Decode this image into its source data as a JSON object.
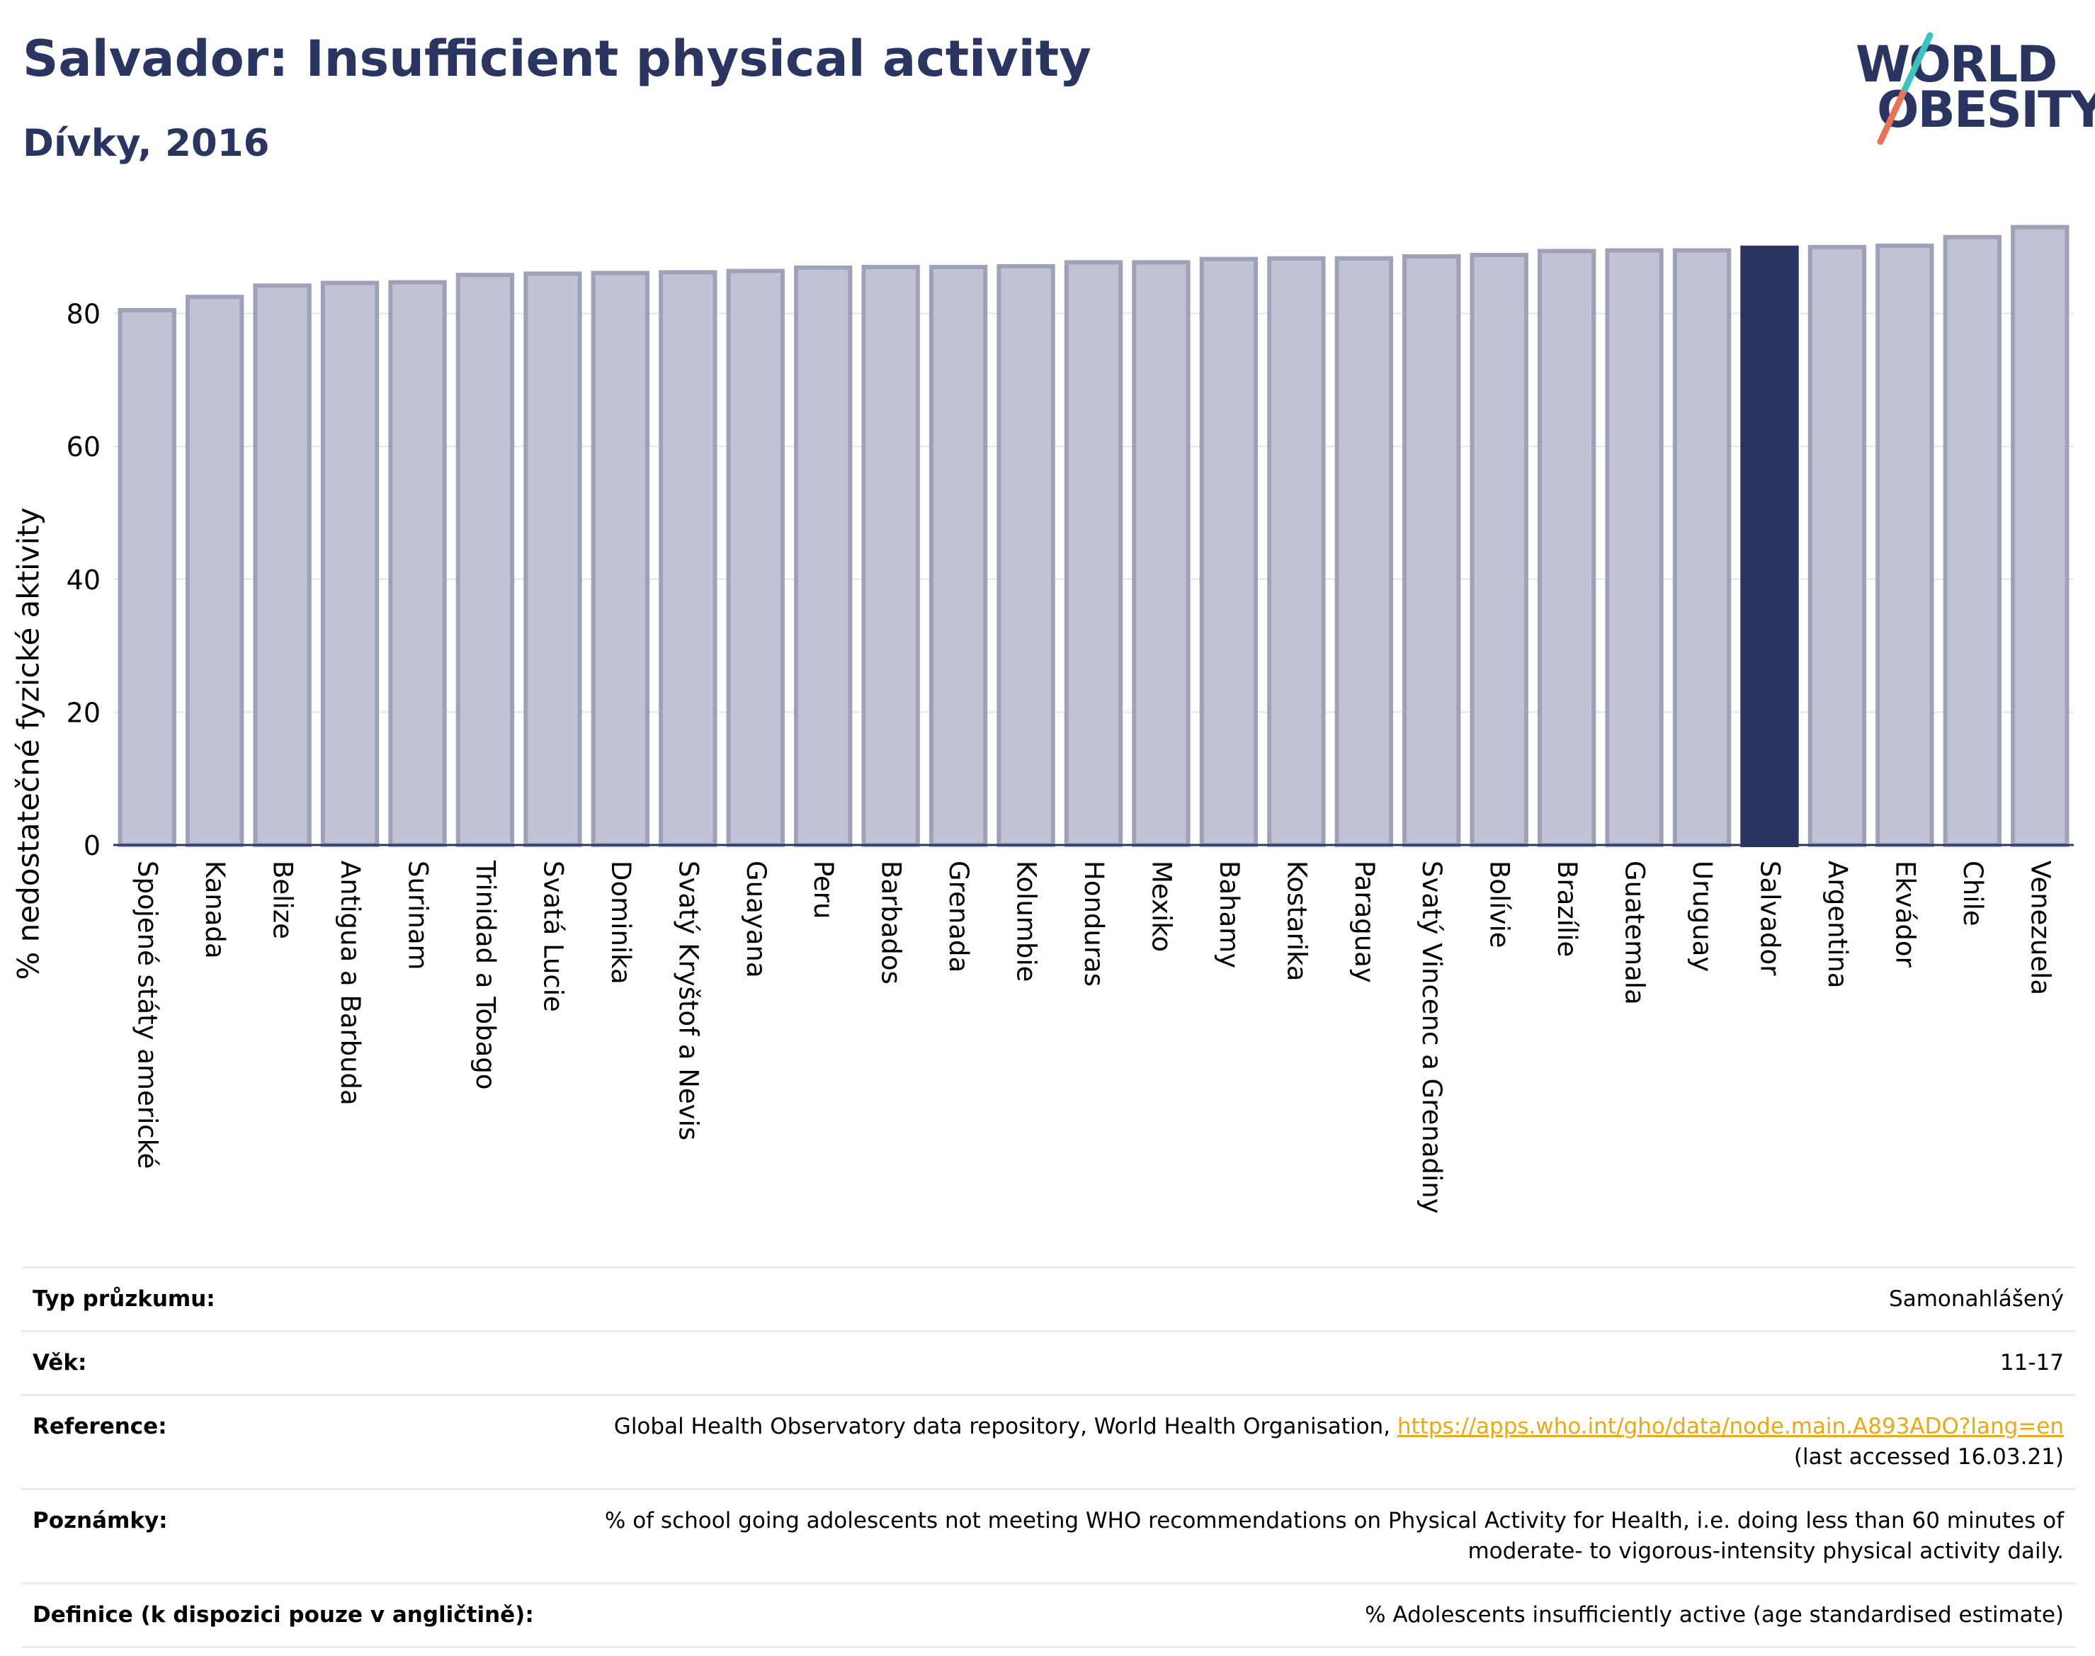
{
  "title": "Salvador: Insufficient physical activity",
  "subtitle": "Dívky, 2016",
  "logo": {
    "line1": "WORLD",
    "line2": "OBESITY"
  },
  "colors": {
    "bar": "#c0c3d3",
    "bar_stroke": "#9ea2b9",
    "highlight": "#2b3561",
    "title": "#2b3561",
    "link": "#e8a817"
  },
  "chart_data": {
    "type": "bar",
    "ylabel": "% nedostatečné fyzické aktivity",
    "ylim": [
      0,
      95
    ],
    "yticks": [
      0,
      20,
      40,
      60,
      80
    ],
    "grid": true,
    "highlight": "Salvador",
    "categories": [
      "Spojené státy americké",
      "Kanada",
      "Belize",
      "Antigua a Barbuda",
      "Surinam",
      "Trinidad a Tobago",
      "Svatá Lucie",
      "Dominika",
      "Svatý Kryštof a Nevis",
      "Guayana",
      "Peru",
      "Barbados",
      "Grenada",
      "Kolumbie",
      "Honduras",
      "Mexiko",
      "Bahamy",
      "Kostarika",
      "Paraguay",
      "Svatý Vincenc a Grenadiny",
      "Bolívie",
      "Brazílie",
      "Guatemala",
      "Uruguay",
      "Salvador",
      "Argentina",
      "Ekvádor",
      "Chile",
      "Venezuela"
    ],
    "values": [
      80.5,
      82.5,
      84.2,
      84.6,
      84.7,
      85.8,
      86.0,
      86.1,
      86.2,
      86.4,
      86.9,
      87.0,
      87.0,
      87.1,
      87.7,
      87.7,
      88.2,
      88.3,
      88.3,
      88.6,
      88.8,
      89.4,
      89.5,
      89.5,
      89.9,
      90.0,
      90.2,
      91.5,
      93.0
    ]
  },
  "info": [
    {
      "label": "Typ průzkumu:",
      "value": "Samonahlášený"
    },
    {
      "label": "Věk:",
      "value": "11-17"
    },
    {
      "label": "Reference:",
      "value": "Global Health Observatory data repository, World Health Organisation, ",
      "link": "https://apps.who.int/gho/data/node.main.A893ADO?lang=en",
      "value2": "(last accessed 16.03.21)"
    },
    {
      "label": "Poznámky:",
      "value": "% of school going adolescents not meeting WHO recommendations on Physical Activity for Health, i.e. doing less than 60 minutes of moderate- to vigorous-intensity physical activity daily."
    },
    {
      "label": "Definice (k dispozici pouze v angličtině):",
      "value": "% Adolescents insufficiently active (age standardised estimate)"
    }
  ]
}
